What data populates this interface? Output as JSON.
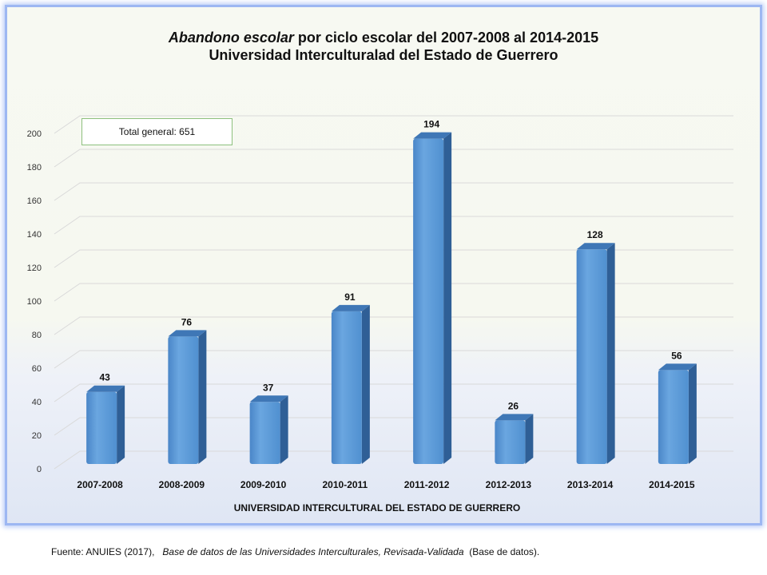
{
  "chart_data": {
    "type": "bar",
    "title_part1": "Abandono  escolar",
    "title_part2": " por ciclo escolar del 2007-2008 al 2014-2015",
    "subtitle": "Universidad Interculturalad del Estado de Guerrero",
    "categories": [
      "2007-2008",
      "2008-2009",
      "2009-2010",
      "2010-2011",
      "2011-2012",
      "2012-2013",
      "2013-2014",
      "2014-2015"
    ],
    "values": [
      43,
      76,
      37,
      91,
      194,
      26,
      128,
      56
    ],
    "xlabel": "UNIVERSIDAD INTERCULTURAL DEL ESTADO DE GUERRERO",
    "ylabel": "",
    "ylim": [
      0,
      200
    ],
    "yticks": [
      0,
      20,
      40,
      60,
      80,
      100,
      120,
      140,
      160,
      180,
      200
    ],
    "grid": true,
    "bar_color": "#5b9bd5",
    "annotation": "Total general: 651"
  },
  "source": {
    "prefix": "Fuente: ANUIES (2017),",
    "italic": "Base de datos de las Universidades  Interculturales, Revisada-Validada",
    "suffix": " (Base de datos)."
  }
}
